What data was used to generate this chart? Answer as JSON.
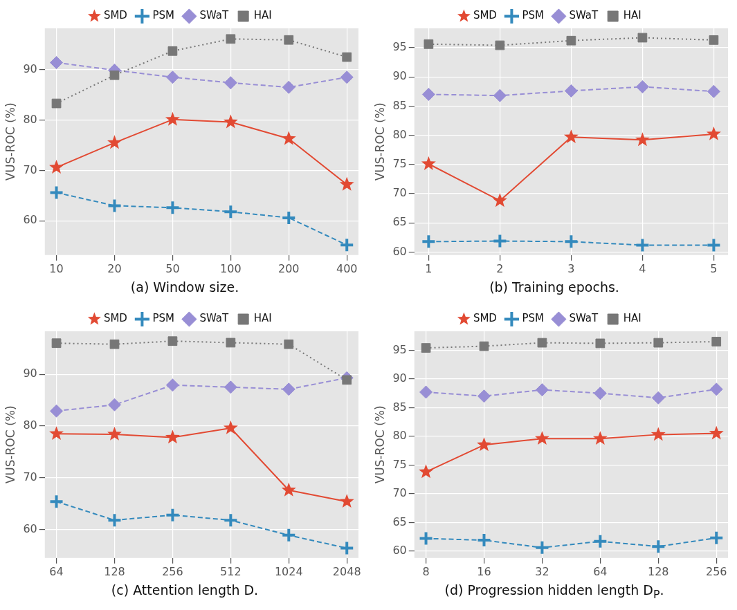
{
  "chart_data": [
    {
      "type": "line",
      "xlabel": "(a) Window size.",
      "ylabel": "VUS-ROC (%)",
      "categories": [
        "10",
        "20",
        "50",
        "100",
        "200",
        "400"
      ],
      "ylim": [
        53.2,
        98.2
      ],
      "yticks": [
        60,
        70,
        80,
        90
      ],
      "grid": true,
      "legend": "top",
      "series": [
        {
          "name": "SMD",
          "color": "#e24a33",
          "marker": "star",
          "line_style": "solid",
          "values": [
            70.6,
            75.5,
            80.1,
            79.6,
            76.3,
            67.2
          ]
        },
        {
          "name": "PSM",
          "color": "#348abd",
          "marker": "cross",
          "line_style": "dashed",
          "values": [
            65.6,
            63.0,
            62.6,
            61.8,
            60.6,
            55.2
          ]
        },
        {
          "name": "SWaT",
          "color": "#988ed5",
          "marker": "diamond",
          "line_style": "dashed",
          "values": [
            91.4,
            89.9,
            88.5,
            87.4,
            86.5,
            88.5
          ]
        },
        {
          "name": "HAI",
          "color": "#777777",
          "marker": "square",
          "line_style": "dotted",
          "values": [
            83.3,
            88.9,
            93.7,
            96.1,
            95.9,
            92.5
          ]
        }
      ]
    },
    {
      "type": "line",
      "xlabel": "(b) Training epochs.",
      "ylabel": "VUS-ROC (%)",
      "categories": [
        "1",
        "2",
        "3",
        "4",
        "5"
      ],
      "ylim": [
        59.5,
        98.3
      ],
      "yticks": [
        60,
        65,
        70,
        75,
        80,
        85,
        90,
        95
      ],
      "grid": true,
      "legend": "top",
      "series": [
        {
          "name": "SMD",
          "color": "#e24a33",
          "marker": "star",
          "line_style": "solid",
          "values": [
            75.1,
            68.8,
            79.7,
            79.2,
            80.2
          ]
        },
        {
          "name": "PSM",
          "color": "#348abd",
          "marker": "cross",
          "line_style": "dashed",
          "values": [
            61.8,
            61.9,
            61.8,
            61.2,
            61.2
          ]
        },
        {
          "name": "SWaT",
          "color": "#988ed5",
          "marker": "diamond",
          "line_style": "dashed",
          "values": [
            87.0,
            86.8,
            87.6,
            88.3,
            87.5
          ]
        },
        {
          "name": "HAI",
          "color": "#777777",
          "marker": "square",
          "line_style": "dotted",
          "values": [
            95.6,
            95.4,
            96.2,
            96.7,
            96.3
          ]
        }
      ]
    },
    {
      "type": "line",
      "xlabel": "(c) Attention length D.",
      "ylabel": "VUS-ROC (%)",
      "categories": [
        "64",
        "128",
        "256",
        "512",
        "1024",
        "2048"
      ],
      "ylim": [
        54.5,
        98.3
      ],
      "yticks": [
        60,
        70,
        80,
        90
      ],
      "grid": true,
      "legend": "top",
      "series": [
        {
          "name": "SMD",
          "color": "#e24a33",
          "marker": "star",
          "line_style": "solid",
          "values": [
            78.5,
            78.4,
            77.8,
            79.6,
            67.6,
            65.4
          ]
        },
        {
          "name": "PSM",
          "color": "#348abd",
          "marker": "cross",
          "line_style": "dashed",
          "values": [
            65.4,
            61.8,
            62.8,
            61.8,
            58.9,
            56.4
          ]
        },
        {
          "name": "SWaT",
          "color": "#988ed5",
          "marker": "diamond",
          "line_style": "dashed",
          "values": [
            82.9,
            84.1,
            87.9,
            87.5,
            87.1,
            89.3
          ]
        },
        {
          "name": "HAI",
          "color": "#777777",
          "marker": "square",
          "line_style": "dotted",
          "values": [
            96.0,
            95.8,
            96.4,
            96.1,
            95.8,
            88.9
          ]
        }
      ]
    },
    {
      "type": "line",
      "xlabel": "(d) Progression hidden length D$_{P}$.",
      "ylabel": "VUS-ROC (%)",
      "categories": [
        "8",
        "16",
        "32",
        "64",
        "128",
        "256"
      ],
      "ylim": [
        58.8,
        98.3
      ],
      "yticks": [
        60,
        65,
        70,
        75,
        80,
        85,
        90,
        95
      ],
      "grid": true,
      "legend": "top",
      "series": [
        {
          "name": "SMD",
          "color": "#e24a33",
          "marker": "star",
          "line_style": "solid",
          "values": [
            73.8,
            78.5,
            79.6,
            79.6,
            80.3,
            80.5
          ]
        },
        {
          "name": "PSM",
          "color": "#348abd",
          "marker": "cross",
          "line_style": "dashed",
          "values": [
            62.2,
            61.9,
            60.6,
            61.7,
            60.8,
            62.3
          ]
        },
        {
          "name": "SWaT",
          "color": "#988ed5",
          "marker": "diamond",
          "line_style": "dashed",
          "values": [
            87.7,
            87.0,
            88.1,
            87.5,
            86.7,
            88.2
          ]
        },
        {
          "name": "HAI",
          "color": "#777777",
          "marker": "square",
          "line_style": "dotted",
          "values": [
            95.4,
            95.7,
            96.3,
            96.2,
            96.3,
            96.5
          ]
        }
      ]
    }
  ]
}
